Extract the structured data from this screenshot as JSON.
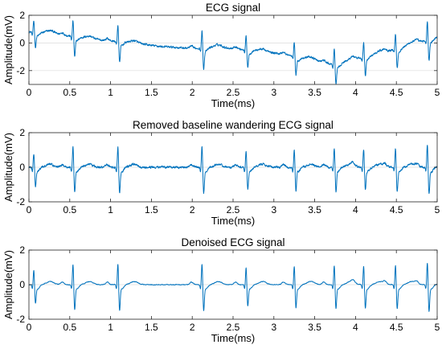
{
  "chart_data": [
    {
      "type": "line",
      "title": "ECG signal",
      "xlabel": "Time(ms)",
      "ylabel": "Amplitude(mV)",
      "xlim": [
        0,
        5
      ],
      "ylim": [
        -3,
        2
      ],
      "xticks": [
        0,
        0.5,
        1,
        1.5,
        2,
        2.5,
        3,
        3.5,
        4,
        4.5,
        5
      ],
      "xtick_labels": [
        "0",
        "0.5",
        "1",
        "1.5",
        "2",
        "2.5",
        "3",
        "3.5",
        "4",
        "4.5",
        "5"
      ],
      "yticks": [
        -2,
        0,
        2
      ],
      "ytick_labels": [
        "-2",
        "0",
        "2"
      ],
      "grid": true,
      "color": "#0072BD",
      "baseline": [
        [
          0,
          0.8
        ],
        [
          0.3,
          0.7
        ],
        [
          0.55,
          0.45
        ],
        [
          0.9,
          0.2
        ],
        [
          1.2,
          0.05
        ],
        [
          1.6,
          -0.25
        ],
        [
          2.0,
          -0.4
        ],
        [
          2.3,
          -0.3
        ],
        [
          2.7,
          -0.5
        ],
        [
          3.1,
          -0.8
        ],
        [
          3.5,
          -1.25
        ],
        [
          3.75,
          -1.6
        ],
        [
          4.0,
          -1.2
        ],
        [
          4.25,
          -0.8
        ],
        [
          4.55,
          -0.35
        ],
        [
          4.8,
          0.1
        ],
        [
          5.0,
          0.4
        ]
      ],
      "beats": [
        0.06,
        0.54,
        1.09,
        2.12,
        2.66,
        3.25,
        3.74,
        4.1,
        4.49,
        4.88
      ],
      "beat_amplitudes": [
        0.9,
        1.25,
        1.3,
        1.3,
        1.05,
        1.15,
        1.2,
        1.15,
        1.2,
        1.35
      ],
      "noise": 0.06
    },
    {
      "type": "line",
      "title": "Removed baseline wandering ECG signal",
      "xlabel": "Time(ms)",
      "ylabel": "Amplitude(mV)",
      "xlim": [
        0,
        5
      ],
      "ylim": [
        -2,
        2
      ],
      "xticks": [
        0,
        0.5,
        1,
        1.5,
        2,
        2.5,
        3,
        3.5,
        4,
        4.5,
        5
      ],
      "xtick_labels": [
        "0",
        "0.5",
        "1",
        "1.5",
        "2",
        "2.5",
        "3",
        "3.5",
        "4",
        "4.5",
        "5"
      ],
      "yticks": [
        -2,
        0,
        2
      ],
      "ytick_labels": [
        "-2",
        "0",
        "2"
      ],
      "grid": true,
      "color": "#0072BD",
      "baseline": [
        [
          0,
          0
        ],
        [
          5,
          0
        ]
      ],
      "beats": [
        0.06,
        0.54,
        1.09,
        2.12,
        2.66,
        3.25,
        3.74,
        4.1,
        4.49,
        4.88
      ],
      "beat_amplitudes": [
        0.9,
        1.25,
        1.3,
        1.3,
        1.05,
        1.15,
        1.2,
        1.15,
        1.2,
        1.35
      ],
      "noise": 0.05
    },
    {
      "type": "line",
      "title": "Denoised ECG signal",
      "xlabel": "Time(ms)",
      "ylabel": "Amplitude(mV)",
      "xlim": [
        0,
        5
      ],
      "ylim": [
        -2,
        2
      ],
      "xticks": [
        0,
        0.5,
        1,
        1.5,
        2,
        2.5,
        3,
        3.5,
        4,
        4.5,
        5
      ],
      "xtick_labels": [
        "0",
        "0.5",
        "1",
        "1.5",
        "2",
        "2.5",
        "3",
        "3.5",
        "4",
        "4.5",
        "5"
      ],
      "yticks": [
        -2,
        0,
        2
      ],
      "ytick_labels": [
        "-2",
        "0",
        "2"
      ],
      "grid": true,
      "color": "#0072BD",
      "baseline": [
        [
          0,
          0
        ],
        [
          5,
          0
        ]
      ],
      "beats": [
        0.06,
        0.54,
        1.09,
        2.12,
        2.66,
        3.25,
        3.74,
        4.1,
        4.49,
        4.88
      ],
      "beat_amplitudes": [
        0.9,
        1.25,
        1.3,
        1.3,
        1.05,
        1.15,
        1.2,
        1.15,
        1.2,
        1.35
      ],
      "noise": 0.015
    }
  ]
}
